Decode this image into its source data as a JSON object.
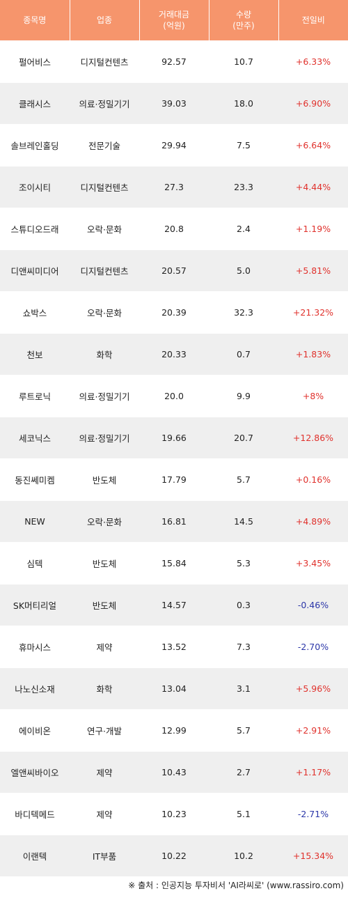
{
  "headers": [
    "종목명",
    "업종",
    "거래대금\n(억원)",
    "수량\n(만주)",
    "전일비"
  ],
  "rows": [
    {
      "name": "펄어비스",
      "sector": "디지털컨텐츠",
      "amount": "92.57",
      "volume": "10.7",
      "change": "+6.33%"
    },
    {
      "name": "클래시스",
      "sector": "의료·정밀기기",
      "amount": "39.03",
      "volume": "18.0",
      "change": "+6.90%"
    },
    {
      "name": "솔브레인홀딩",
      "sector": "전문기술",
      "amount": "29.94",
      "volume": "7.5",
      "change": "+6.64%"
    },
    {
      "name": "조이시티",
      "sector": "디지털컨텐츠",
      "amount": "27.3",
      "volume": "23.3",
      "change": "+4.44%"
    },
    {
      "name": "스튜디오드래",
      "sector": "오락·문화",
      "amount": "20.8",
      "volume": "2.4",
      "change": "+1.19%"
    },
    {
      "name": "디앤씨미디어",
      "sector": "디지털컨텐츠",
      "amount": "20.57",
      "volume": "5.0",
      "change": "+5.81%"
    },
    {
      "name": "쇼박스",
      "sector": "오락·문화",
      "amount": "20.39",
      "volume": "32.3",
      "change": "+21.32%"
    },
    {
      "name": "천보",
      "sector": "화학",
      "amount": "20.33",
      "volume": "0.7",
      "change": "+1.83%"
    },
    {
      "name": "루트로닉",
      "sector": "의료·정밀기기",
      "amount": "20.0",
      "volume": "9.9",
      "change": "+8%"
    },
    {
      "name": "세코닉스",
      "sector": "의료·정밀기기",
      "amount": "19.66",
      "volume": "20.7",
      "change": "+12.86%"
    },
    {
      "name": "동진쎄미켐",
      "sector": "반도체",
      "amount": "17.79",
      "volume": "5.7",
      "change": "+0.16%"
    },
    {
      "name": "NEW",
      "sector": "오락·문화",
      "amount": "16.81",
      "volume": "14.5",
      "change": "+4.89%"
    },
    {
      "name": "심텍",
      "sector": "반도체",
      "amount": "15.84",
      "volume": "5.3",
      "change": "+3.45%"
    },
    {
      "name": "SK머티리얼",
      "sector": "반도체",
      "amount": "14.57",
      "volume": "0.3",
      "change": "-0.46%"
    },
    {
      "name": "휴마시스",
      "sector": "제약",
      "amount": "13.52",
      "volume": "7.3",
      "change": "-2.70%"
    },
    {
      "name": "나노신소재",
      "sector": "화학",
      "amount": "13.04",
      "volume": "3.1",
      "change": "+5.96%"
    },
    {
      "name": "에이비온",
      "sector": "연구·개발",
      "amount": "12.99",
      "volume": "5.7",
      "change": "+2.91%"
    },
    {
      "name": "엘앤씨바이오",
      "sector": "제약",
      "amount": "10.43",
      "volume": "2.7",
      "change": "+1.17%"
    },
    {
      "name": "바디텍메드",
      "sector": "제약",
      "amount": "10.23",
      "volume": "5.1",
      "change": "-2.71%"
    },
    {
      "name": "이랜텍",
      "sector": "IT부품",
      "amount": "10.22",
      "volume": "10.2",
      "change": "+15.34%"
    }
  ],
  "source": "※ 출처 : 인공지능 투자비서 'AI라씨로' (www.rassiro.com)",
  "colors": {
    "header_bg": "#f6956c",
    "row_alt": "#efefef",
    "positive": "#e0312c",
    "negative": "#2b36a8"
  }
}
